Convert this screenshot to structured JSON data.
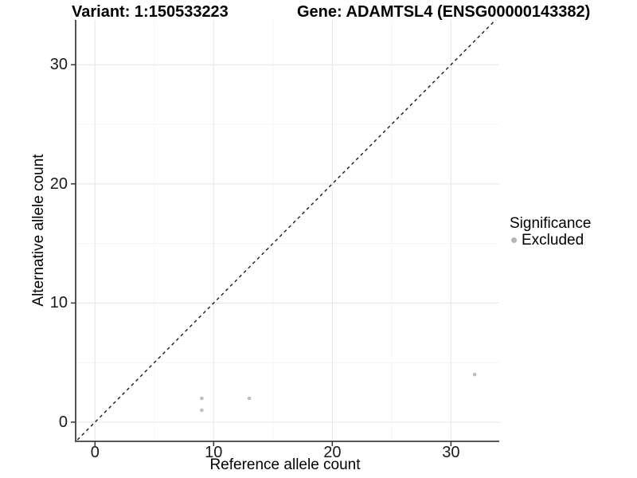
{
  "header": {
    "variant_title": "Variant: 1:150533223",
    "gene_title": "Gene: ADAMTSL4 (ENSG00000143382)"
  },
  "chart_data": {
    "type": "scatter",
    "title": "Variant: 1:150533223",
    "subtitle": "Gene: ADAMTSL4 (ENSG00000143382)",
    "xlabel": "Reference allele count",
    "ylabel": "Alternative allele count",
    "xlim": [
      -1.63,
      34.07
    ],
    "ylim": [
      -1.61,
      33.76
    ],
    "x_ticks": [
      0,
      10,
      20,
      30
    ],
    "y_ticks": [
      0,
      10,
      20,
      30
    ],
    "x_minor_ticks": [
      5,
      15,
      25
    ],
    "y_minor_ticks": [
      5,
      15,
      25
    ],
    "grid": "major and minor gridlines, light gray, white background",
    "identity_line": {
      "slope": 1,
      "intercept": 0,
      "style": "dashed",
      "color": "#1a1a1a"
    },
    "series": [
      {
        "name": "Excluded",
        "color": "#bfbfbf",
        "points": [
          [
            9,
            1
          ],
          [
            9,
            2
          ],
          [
            13,
            2
          ],
          [
            32,
            4
          ]
        ]
      }
    ],
    "legend": {
      "title": "Significance",
      "position": "right",
      "entries": [
        {
          "label": "Excluded",
          "color": "#b5b5b5"
        }
      ]
    },
    "colors": {
      "grid_major": "#e9e9e9",
      "grid_minor": "#f4f4f4",
      "axis_line": "#404040",
      "tick_mark": "#333333",
      "point": "#bfbfbf",
      "text": "#000000"
    }
  }
}
